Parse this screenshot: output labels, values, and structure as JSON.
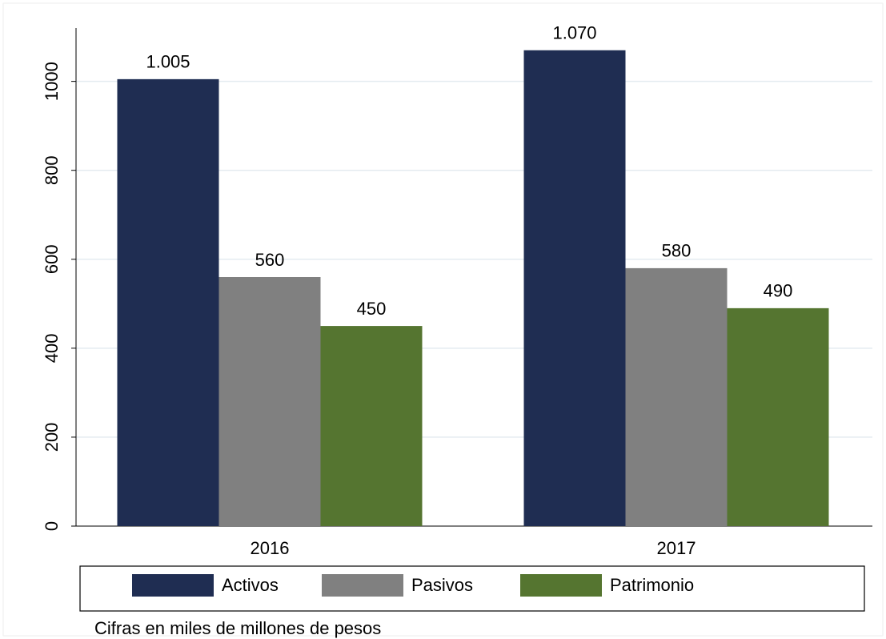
{
  "chart_data": {
    "type": "bar",
    "categories": [
      "2016",
      "2017"
    ],
    "series": [
      {
        "name": "Activos",
        "color": "#1f2d52",
        "values": [
          1005,
          1070
        ],
        "value_labels": [
          "1.005",
          "1.070"
        ]
      },
      {
        "name": "Pasivos",
        "color": "#808080",
        "values": [
          560,
          580
        ]
      },
      {
        "name": "Patrimonio",
        "color": "#557530",
        "values": [
          450,
          490
        ]
      }
    ],
    "ylim": [
      0,
      1120
    ],
    "yticks": [
      0,
      200,
      400,
      600,
      800,
      1000
    ],
    "grid": true,
    "legend": "bottom",
    "note": "Cifras en miles de millones de pesos"
  }
}
